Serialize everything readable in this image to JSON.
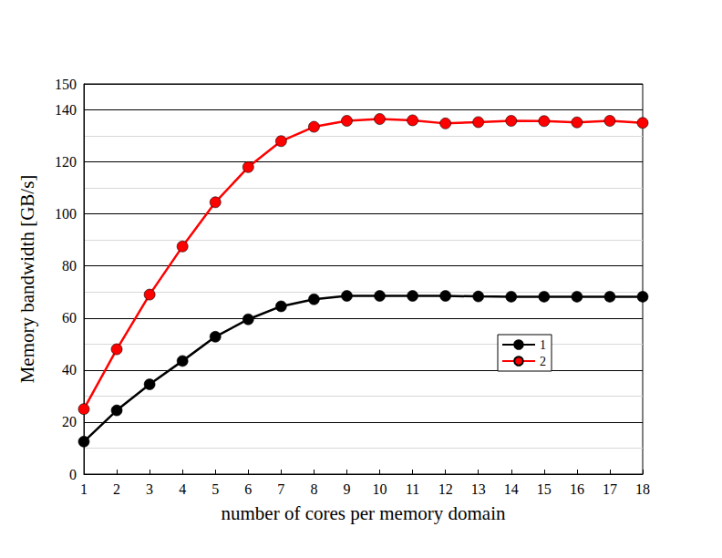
{
  "chart_data": {
    "type": "line",
    "x_label": "number of cores per memory domain",
    "y_label": "Memory bandwidth [GB/s]",
    "x": [
      1,
      2,
      3,
      4,
      5,
      6,
      7,
      8,
      9,
      10,
      11,
      12,
      13,
      14,
      15,
      16,
      17,
      18
    ],
    "series": [
      {
        "name": "1",
        "color": "#000000",
        "marker": "circle",
        "values": [
          12.5,
          24.5,
          34.5,
          43.5,
          52.8,
          59.5,
          64.5,
          67.2,
          68.5,
          68.5,
          68.5,
          68.5,
          68.3,
          68.2,
          68.2,
          68.2,
          68.2,
          68.2
        ]
      },
      {
        "name": "2",
        "color": "#ff0000",
        "marker": "circle",
        "values": [
          25,
          48,
          69,
          87.5,
          104.5,
          118,
          128,
          133.5,
          135.8,
          136.5,
          136,
          134.8,
          135.3,
          135.8,
          135.7,
          135.2,
          135.8,
          135
        ]
      }
    ],
    "xlim": [
      1,
      18
    ],
    "xticks": [
      1,
      2,
      3,
      4,
      5,
      6,
      7,
      8,
      9,
      10,
      11,
      12,
      13,
      14,
      15,
      16,
      17,
      18
    ],
    "ylim": [
      0,
      150
    ],
    "yticks": [
      0,
      20,
      40,
      60,
      80,
      100,
      120,
      140
    ],
    "grid": true,
    "legend": "right"
  }
}
